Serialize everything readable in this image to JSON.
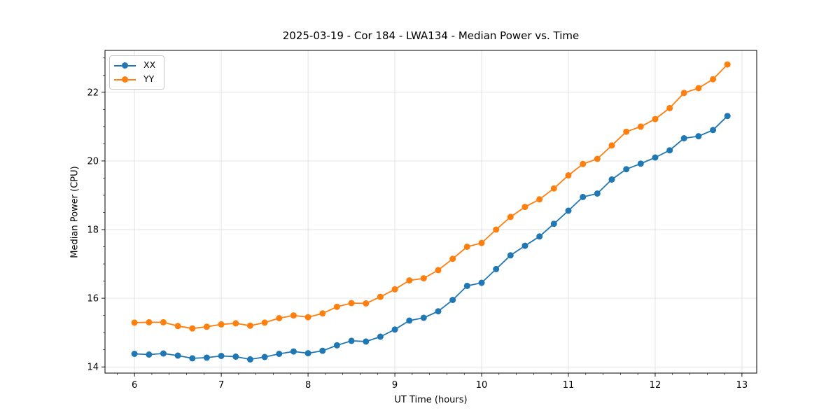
{
  "chart_data": {
    "type": "line",
    "title": "2025-03-19 - Cor 184 - LWA134 - Median Power vs. Time",
    "xlabel": "UT Time (hours)",
    "ylabel": "Median Power (CPU)",
    "x": [
      6.0,
      6.167,
      6.333,
      6.5,
      6.667,
      6.833,
      7.0,
      7.167,
      7.333,
      7.5,
      7.667,
      7.833,
      8.0,
      8.167,
      8.333,
      8.5,
      8.667,
      8.833,
      9.0,
      9.167,
      9.333,
      9.5,
      9.667,
      9.833,
      10.0,
      10.167,
      10.333,
      10.5,
      10.667,
      10.833,
      11.0,
      11.167,
      11.333,
      11.5,
      11.667,
      11.833,
      12.0,
      12.167,
      12.333,
      12.5,
      12.667,
      12.833
    ],
    "series": [
      {
        "name": "XX",
        "color": "#1f77b4",
        "values": [
          14.38,
          14.36,
          14.39,
          14.33,
          14.25,
          14.27,
          14.32,
          14.3,
          14.22,
          14.29,
          14.38,
          14.45,
          14.4,
          14.47,
          14.63,
          14.76,
          14.74,
          14.88,
          15.09,
          15.35,
          15.43,
          15.62,
          15.95,
          16.36,
          16.45,
          16.85,
          17.25,
          17.53,
          17.8,
          18.17,
          18.55,
          18.95,
          19.05,
          19.46,
          19.76,
          19.92,
          20.1,
          20.31,
          20.66,
          20.72,
          20.9,
          21.31
        ]
      },
      {
        "name": "YY",
        "color": "#ff7f0e",
        "values": [
          15.29,
          15.3,
          15.3,
          15.19,
          15.12,
          15.17,
          15.24,
          15.27,
          15.2,
          15.29,
          15.42,
          15.5,
          15.45,
          15.56,
          15.75,
          15.86,
          15.85,
          16.04,
          16.26,
          16.52,
          16.58,
          16.82,
          17.15,
          17.5,
          17.61,
          18.0,
          18.37,
          18.66,
          18.88,
          19.2,
          19.58,
          19.91,
          20.06,
          20.45,
          20.85,
          21.0,
          21.22,
          21.54,
          21.98,
          22.12,
          22.38,
          22.81
        ]
      }
    ],
    "xticks": [
      6,
      7,
      8,
      9,
      10,
      11,
      12,
      13
    ],
    "yticks": [
      14,
      16,
      18,
      20,
      22
    ],
    "xlim": [
      5.66,
      13.17
    ],
    "ylim": [
      13.82,
      23.22
    ],
    "x_minor_step": 0.2,
    "y_minor_step": 0.5,
    "grid": true,
    "grid_color": "#e0e0e0",
    "legend_position": "upper-left",
    "marker": "circle",
    "background": "#ffffff"
  }
}
